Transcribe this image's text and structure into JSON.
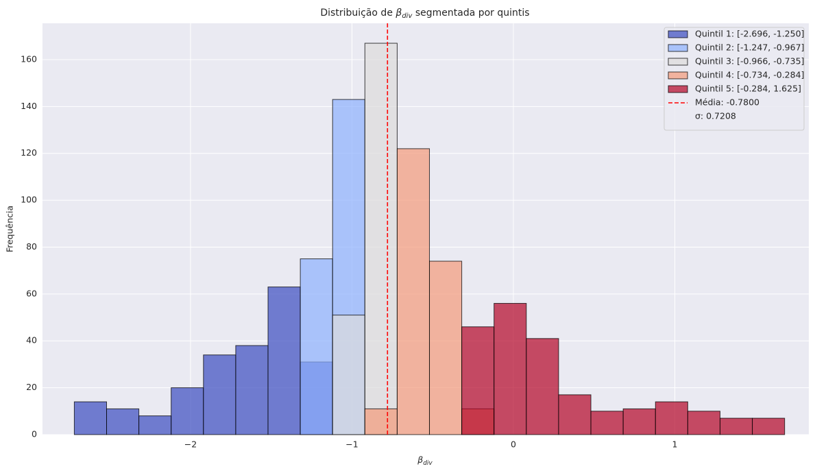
{
  "chart_data": {
    "type": "histogram",
    "title": {
      "before": "Distribuição de",
      "symbol": "β",
      "subscript": "div",
      "after": "segmentada por quintis"
    },
    "xlabel": {
      "symbol": "β",
      "subscript": "div"
    },
    "ylabel": "Frequência",
    "bins": [
      -2.72,
      -2.52,
      -2.32,
      -2.12,
      -1.92,
      -1.72,
      -1.52,
      -1.32,
      -1.12,
      -0.92,
      -0.72,
      -0.52,
      -0.32,
      -0.12,
      0.08,
      0.28,
      0.48,
      0.68,
      0.88,
      1.08,
      1.28,
      1.48,
      1.68
    ],
    "series": [
      {
        "name": "Quintil 1: [-2.696, -1.250]",
        "color": "#3b4cc0",
        "values": [
          14,
          11,
          8,
          20,
          34,
          38,
          63,
          31,
          0,
          0,
          0,
          0,
          0,
          0,
          0,
          0,
          0,
          0,
          0,
          0,
          0,
          0
        ]
      },
      {
        "name": "Quintil 2: [-1.247, -0.967]",
        "color": "#8db0fe",
        "values": [
          0,
          0,
          0,
          0,
          0,
          0,
          0,
          75,
          143,
          0,
          0,
          0,
          0,
          0,
          0,
          0,
          0,
          0,
          0,
          0,
          0,
          0
        ]
      },
      {
        "name": "Quintil 3: [-0.966, -0.735]",
        "color": "#dddcdc",
        "values": [
          0,
          0,
          0,
          0,
          0,
          0,
          0,
          0,
          51,
          167,
          0,
          0,
          0,
          0,
          0,
          0,
          0,
          0,
          0,
          0,
          0,
          0
        ]
      },
      {
        "name": "Quintil 4: [-0.734, -0.284]",
        "color": "#f49a7b",
        "values": [
          0,
          0,
          0,
          0,
          0,
          0,
          0,
          0,
          0,
          11,
          122,
          74,
          11,
          0,
          0,
          0,
          0,
          0,
          0,
          0,
          0,
          0
        ]
      },
      {
        "name": "Quintil 5: [-0.284, 1.625]",
        "color": "#b40426",
        "values": [
          0,
          0,
          0,
          0,
          0,
          0,
          0,
          0,
          0,
          0,
          0,
          0,
          46,
          56,
          41,
          17,
          10,
          11,
          14,
          10,
          7,
          7
        ]
      }
    ],
    "mean": {
      "value": -0.78,
      "label": "Média: -0.7800",
      "color": "#ff0000"
    },
    "sigma_label": "σ: 0.7208",
    "xlim": [
      -2.917,
      1.83
    ],
    "ylim": [
      0,
      175.5
    ],
    "xticks": [
      {
        "value": -2,
        "label": "−2"
      },
      {
        "value": -1,
        "label": "−1"
      },
      0,
      1
    ],
    "yticks": [
      0,
      20,
      40,
      60,
      80,
      100,
      120,
      140,
      160
    ],
    "grid": true,
    "legend": "upper right"
  }
}
